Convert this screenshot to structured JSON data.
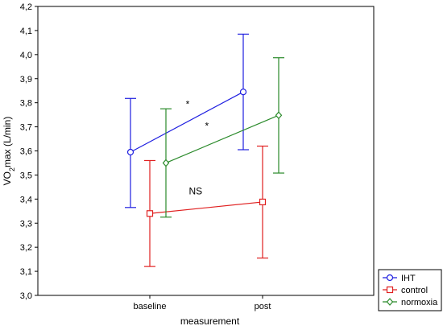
{
  "chart_data": {
    "type": "line",
    "title": "",
    "xlabel": "measurement",
    "ylabel_main": "VO",
    "ylabel_sub": "2",
    "ylabel_rest": "max (L/min)",
    "categories": [
      "baseline",
      "post"
    ],
    "ylim": [
      3.0,
      4.2
    ],
    "yticks": [
      "3,0",
      "3,1",
      "3,2",
      "3,3",
      "3,4",
      "3,5",
      "3,6",
      "3,7",
      "3,8",
      "3,9",
      "4,0",
      "4,1",
      "4,2"
    ],
    "grid": false,
    "legend_position": "bottom-right",
    "series": [
      {
        "name": "IHT",
        "color": "#1f1fe0",
        "marker": "circle",
        "values": [
          3.595,
          3.845
        ],
        "err_low": [
          3.365,
          3.605
        ],
        "err_high": [
          3.818,
          4.085
        ]
      },
      {
        "name": "control",
        "color": "#e02020",
        "marker": "square",
        "values": [
          3.34,
          3.388
        ],
        "err_low": [
          3.12,
          3.155
        ],
        "err_high": [
          3.56,
          3.62
        ]
      },
      {
        "name": "normoxia",
        "color": "#2a8a2a",
        "marker": "diamond",
        "values": [
          3.55,
          3.748
        ],
        "err_low": [
          3.325,
          3.508
        ],
        "err_high": [
          3.775,
          3.987
        ]
      }
    ],
    "annotations": [
      {
        "text": "*",
        "x": 0.55,
        "y": 3.78
      },
      {
        "text": "*",
        "x": 0.72,
        "y": 3.69
      },
      {
        "text": "NS",
        "x": 0.62,
        "y": 3.42
      }
    ]
  }
}
